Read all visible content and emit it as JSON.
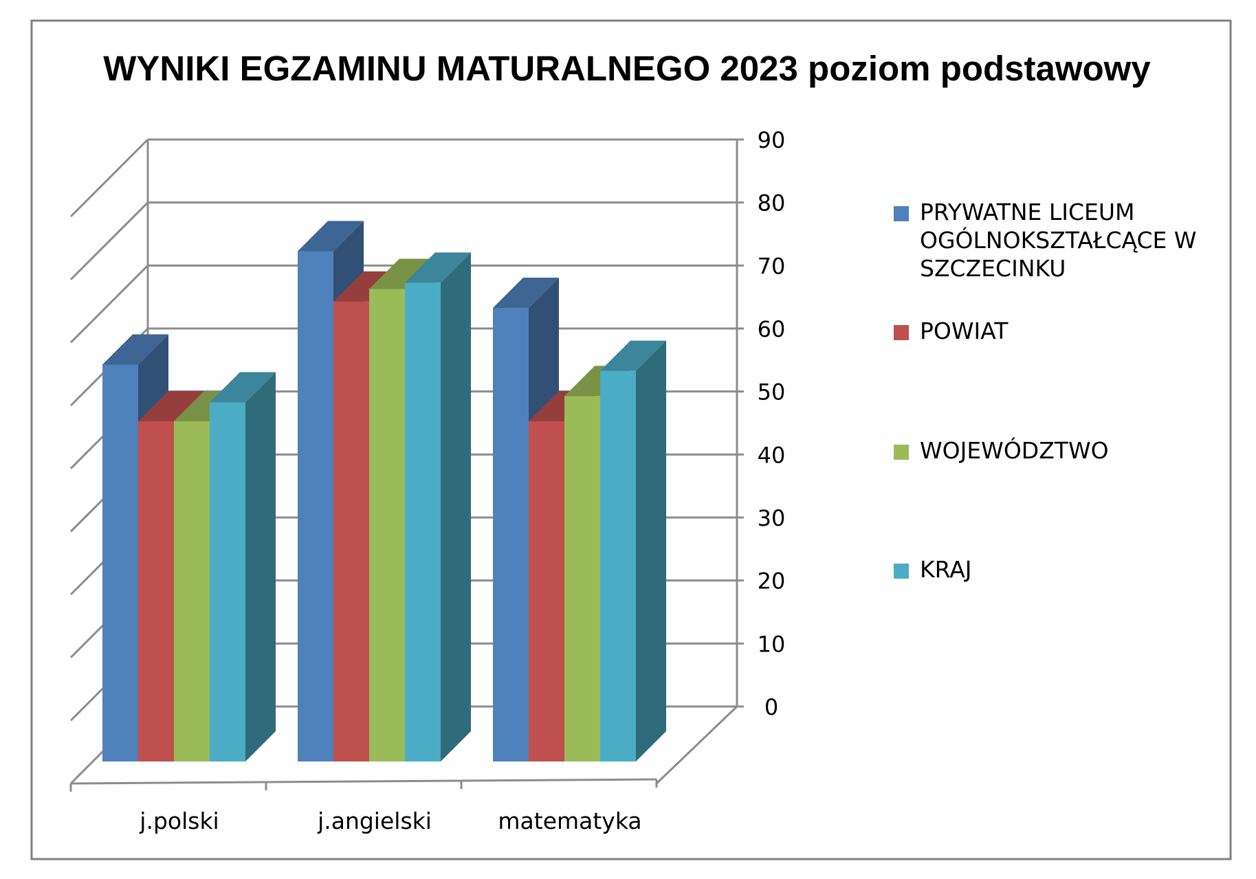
{
  "chart_data": {
    "type": "bar",
    "title": "WYNIKI EGZAMINU MATURALNEGO 2023 poziom podstawowy",
    "xlabel": "",
    "ylabel": "",
    "categories": [
      "j.polski",
      "j.angielski",
      "matematyka"
    ],
    "series": [
      {
        "name": "PRYWATNE LICEUM OGÓLNOKSZTAŁCĄCE W SZCZECINKU",
        "values": [
          63,
          81,
          72
        ],
        "color": "#4F81BD"
      },
      {
        "name": "POWIAT",
        "values": [
          54,
          73,
          54
        ],
        "color": "#C0504D"
      },
      {
        "name": "WOJEWÓDZTWO",
        "values": [
          54,
          75,
          58
        ],
        "color": "#9BBB59"
      },
      {
        "name": "KRAJ",
        "values": [
          57,
          76,
          62
        ],
        "color": "#4BACC6"
      }
    ],
    "legend_lines": [
      [
        "PRYWATNE LICEUM",
        "OGÓLNOKSZTAŁCĄCE W",
        "SZCZECINKU"
      ],
      [
        "POWIAT"
      ],
      [
        "WOJEWÓDZTWO"
      ],
      [
        "KRAJ"
      ]
    ],
    "ylim": [
      0,
      90
    ],
    "yticks": [
      0,
      10,
      20,
      30,
      40,
      50,
      60,
      70,
      80,
      90
    ],
    "grid": true,
    "style": "3d-clustered-column",
    "legend_position": "right"
  }
}
